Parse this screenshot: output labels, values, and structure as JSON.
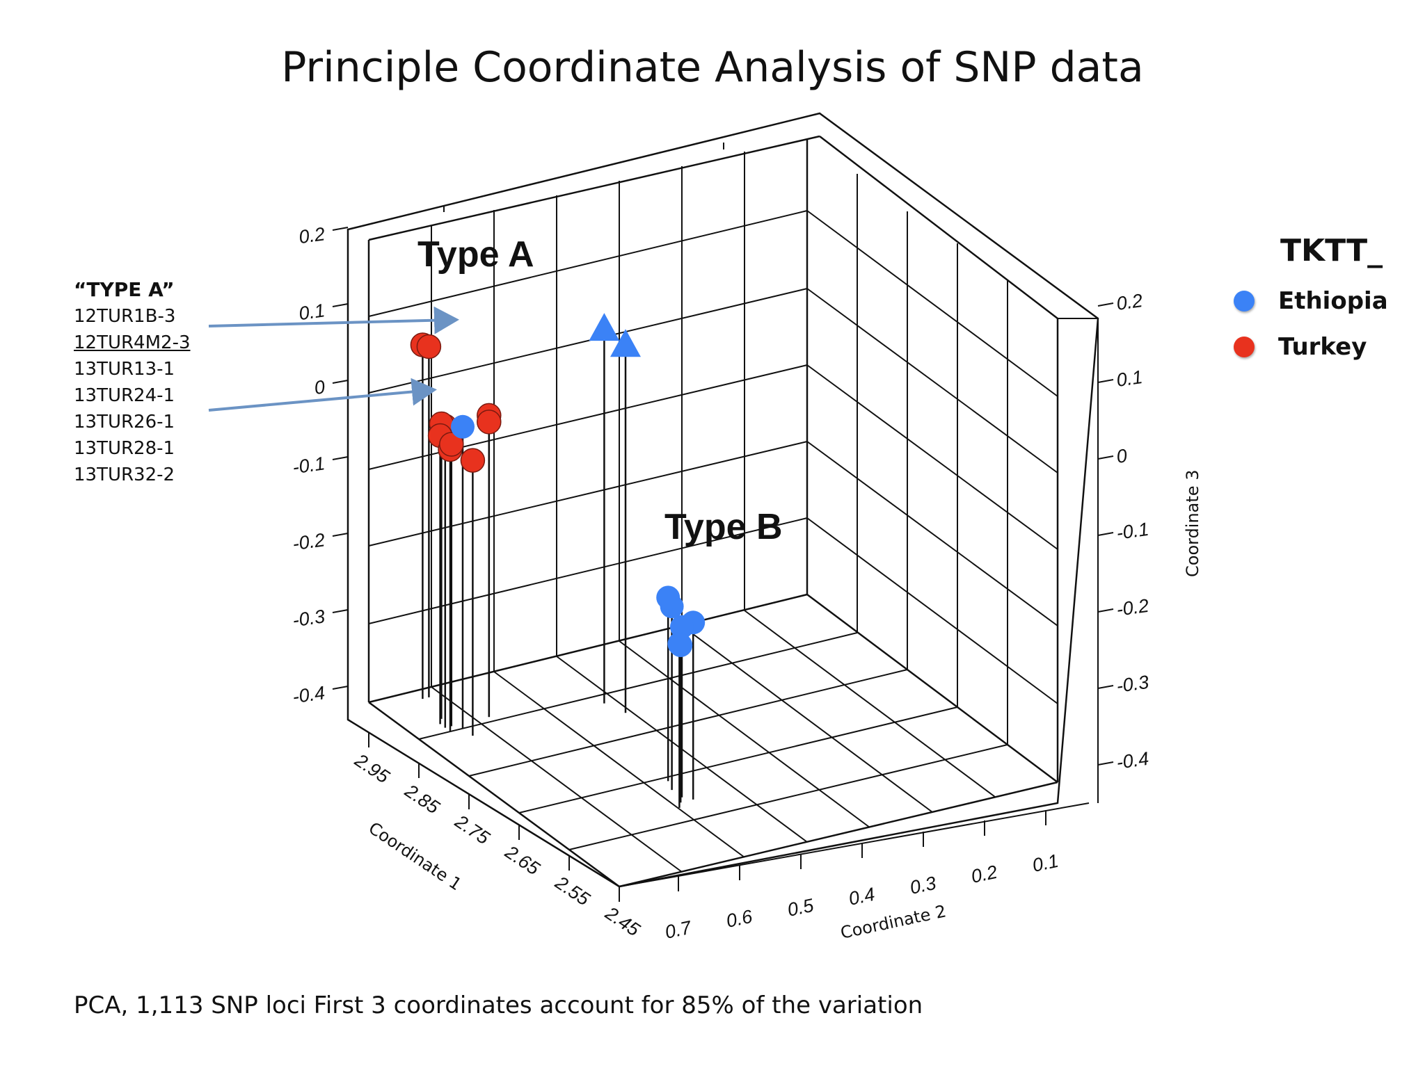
{
  "title": "Principle Coordinate Analysis of SNP data",
  "footnote": "PCA, 1,113 SNP loci First 3 coordinates account for 85% of the variation",
  "type_a_list": {
    "header": "“TYPE A”",
    "items": [
      "12TUR1B-3",
      "12TUR4M2-3",
      "13TUR13-1",
      "13TUR24-1",
      "13TUR26-1",
      "13TUR28-1",
      "13TUR32-2"
    ]
  },
  "legend": {
    "title": "TKTT_",
    "entries": [
      {
        "label": "Ethiopia",
        "color": "#3b82f6"
      },
      {
        "label": "Turkey",
        "color": "#e8321e"
      }
    ]
  },
  "colors": {
    "ethiopia": "#3b82f6",
    "turkey": "#e8321e",
    "arrow": "#6b93c4",
    "grid": "#111111"
  },
  "chart_data": {
    "type": "scatter",
    "title": "Principle Coordinate Analysis of SNP data",
    "xlabel": "Coordinate 1",
    "ylabel": "Coordinate 2",
    "zlabel": "Coordinate 3",
    "x_ticks": [
      "2.95",
      "2.85",
      "2.75",
      "2.65",
      "2.55",
      "2.45"
    ],
    "y_ticks": [
      "0.7",
      "0.6",
      "0.5",
      "0.4",
      "0.3",
      "0.2",
      "0.1"
    ],
    "z_left_ticks": [
      "0.2",
      "0.1",
      "0",
      "-0.1",
      "-0.2",
      "-0.3",
      "-0.4"
    ],
    "z_right_ticks": [
      "0.2",
      "0.1",
      "0",
      "-0.1",
      "-0.2",
      "-0.3",
      "-0.4"
    ],
    "annotations": [
      "Type A",
      "Type B"
    ],
    "series": [
      {
        "name": "Turkey",
        "marker": "circle",
        "points": [
          {
            "x": 2.93,
            "y": 0.68,
            "z": 0.09
          },
          {
            "x": 2.93,
            "y": 0.67,
            "z": 0.085
          },
          {
            "x": 2.86,
            "y": 0.7,
            "z": 0.01
          },
          {
            "x": 2.88,
            "y": 0.69,
            "z": 0.0
          },
          {
            "x": 2.87,
            "y": 0.7,
            "z": -0.01
          },
          {
            "x": 2.85,
            "y": 0.7,
            "z": -0.02
          },
          {
            "x": 2.86,
            "y": 0.69,
            "z": -0.02
          },
          {
            "x": 2.83,
            "y": 0.68,
            "z": -0.03
          },
          {
            "x": 2.86,
            "y": 0.63,
            "z": 0.01
          },
          {
            "x": 2.86,
            "y": 0.63,
            "z": 0.0
          }
        ]
      },
      {
        "name": "Ethiopia",
        "marker": "circle",
        "points": [
          {
            "x": 2.85,
            "y": 0.68,
            "z": 0.01
          },
          {
            "x": 2.62,
            "y": 0.53,
            "z": -0.17
          },
          {
            "x": 2.64,
            "y": 0.52,
            "z": -0.17
          },
          {
            "x": 2.59,
            "y": 0.52,
            "z": -0.18
          },
          {
            "x": 2.6,
            "y": 0.53,
            "z": -0.19
          },
          {
            "x": 2.58,
            "y": 0.55,
            "z": -0.2
          },
          {
            "x": 2.59,
            "y": 0.54,
            "z": -0.21
          }
        ]
      },
      {
        "name": "Ethiopia (triangle)",
        "marker": "triangle",
        "points": [
          {
            "x": 2.83,
            "y": 0.47,
            "z": 0.12
          },
          {
            "x": 2.8,
            "y": 0.46,
            "z": 0.11
          }
        ]
      }
    ]
  }
}
